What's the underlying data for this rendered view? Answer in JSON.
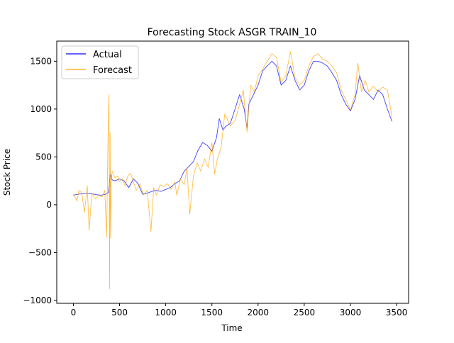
{
  "chart_data": {
    "type": "line",
    "title": "Forecasting Stock ASGR TRAIN_10",
    "xlabel": "Time",
    "ylabel": "Stock Price",
    "xlim": [
      -180,
      3630
    ],
    "ylim": [
      -1030,
      1710
    ],
    "x_ticks": [
      0,
      500,
      1000,
      1500,
      2000,
      2500,
      3000,
      3500
    ],
    "y_ticks": [
      -1000,
      -500,
      0,
      500,
      1000,
      1500
    ],
    "grid": false,
    "legend": "top-left",
    "series": [
      {
        "name": "Actual",
        "color": "#0000ff",
        "x": [
          0,
          50,
          100,
          150,
          200,
          250,
          300,
          350,
          380,
          400,
          420,
          450,
          500,
          550,
          600,
          650,
          700,
          750,
          800,
          850,
          900,
          950,
          1000,
          1050,
          1100,
          1150,
          1200,
          1250,
          1300,
          1350,
          1400,
          1450,
          1500,
          1550,
          1580,
          1620,
          1650,
          1700,
          1750,
          1800,
          1850,
          1880,
          1900,
          1950,
          2000,
          2050,
          2100,
          2150,
          2200,
          2250,
          2300,
          2350,
          2400,
          2450,
          2500,
          2550,
          2600,
          2650,
          2700,
          2750,
          2800,
          2850,
          2900,
          2950,
          3000,
          3050,
          3100,
          3150,
          3200,
          3250,
          3300,
          3350,
          3400,
          3450
        ],
        "y": [
          100,
          110,
          115,
          120,
          115,
          105,
          100,
          110,
          130,
          320,
          260,
          250,
          270,
          250,
          180,
          270,
          220,
          110,
          120,
          140,
          150,
          140,
          160,
          180,
          220,
          250,
          350,
          400,
          450,
          570,
          650,
          620,
          560,
          700,
          900,
          780,
          820,
          850,
          1000,
          1150,
          1000,
          800,
          1050,
          1150,
          1250,
          1400,
          1450,
          1500,
          1450,
          1250,
          1300,
          1450,
          1300,
          1200,
          1250,
          1400,
          1500,
          1500,
          1480,
          1450,
          1380,
          1300,
          1150,
          1050,
          980,
          1100,
          1350,
          1200,
          1150,
          1100,
          1200,
          1150,
          1000,
          870
        ]
      },
      {
        "name": "Forecast",
        "color": "#ffa500",
        "x": [
          0,
          40,
          60,
          90,
          120,
          150,
          170,
          200,
          240,
          270,
          310,
          340,
          360,
          375,
          385,
          392,
          398,
          404,
          410,
          420,
          450,
          480,
          500,
          530,
          560,
          590,
          620,
          650,
          680,
          720,
          760,
          800,
          840,
          870,
          900,
          940,
          980,
          1020,
          1060,
          1100,
          1120,
          1160,
          1200,
          1230,
          1260,
          1300,
          1340,
          1380,
          1420,
          1460,
          1500,
          1530,
          1560,
          1600,
          1640,
          1700,
          1750,
          1800,
          1840,
          1880,
          1920,
          1960,
          2000,
          2050,
          2100,
          2150,
          2200,
          2250,
          2300,
          2350,
          2400,
          2450,
          2500,
          2550,
          2600,
          2650,
          2700,
          2750,
          2800,
          2850,
          2900,
          2950,
          3000,
          3050,
          3080,
          3120,
          3160,
          3200,
          3250,
          3300,
          3350,
          3400,
          3450
        ],
        "y": [
          110,
          40,
          150,
          130,
          -80,
          200,
          -270,
          120,
          60,
          100,
          80,
          150,
          -340,
          700,
          1150,
          -880,
          750,
          -350,
          250,
          350,
          280,
          300,
          240,
          270,
          200,
          300,
          330,
          240,
          150,
          220,
          100,
          150,
          -280,
          180,
          100,
          210,
          190,
          220,
          160,
          240,
          100,
          270,
          210,
          380,
          -100,
          300,
          440,
          350,
          480,
          390,
          650,
          320,
          480,
          600,
          950,
          820,
          880,
          1050,
          1200,
          760,
          1250,
          1180,
          1350,
          1420,
          1500,
          1580,
          1540,
          1280,
          1350,
          1600,
          1330,
          1250,
          1300,
          1450,
          1550,
          1580,
          1520,
          1500,
          1450,
          1380,
          1200,
          1100,
          990,
          1150,
          1480,
          1180,
          1300,
          1180,
          1240,
          1180,
          1230,
          1200,
          920
        ]
      }
    ]
  }
}
